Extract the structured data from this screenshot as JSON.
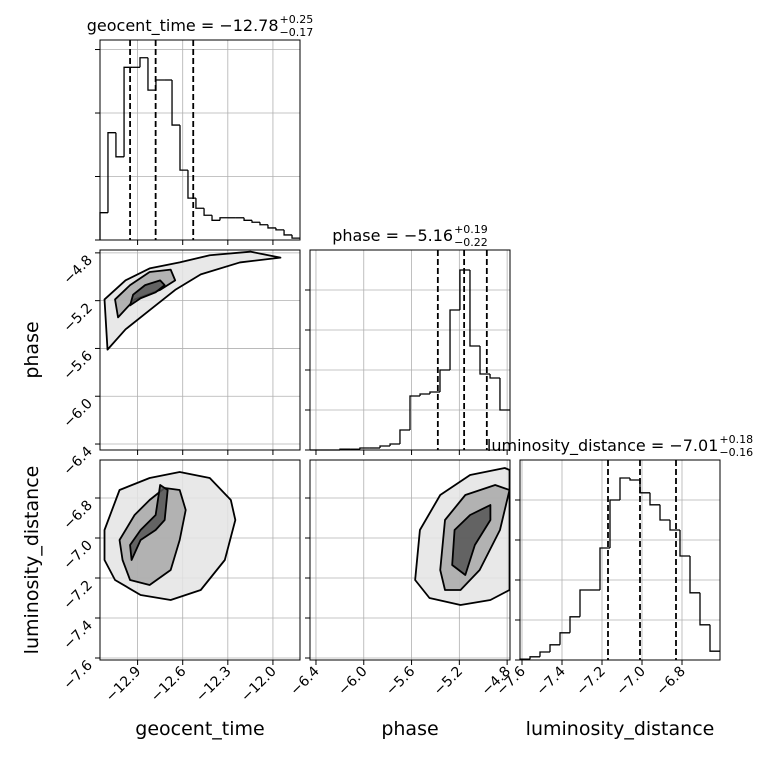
{
  "chart_data": {
    "type": "corner",
    "params": [
      {
        "label": "geocent_time",
        "title": {
          "text": "geocent_time = −12.78",
          "plus": "+0.25",
          "minus": "−0.17"
        },
        "xlim": [
          -13.15,
          -11.82
        ],
        "ticks": [
          {
            "value": -12.9,
            "label": "−12.9"
          },
          {
            "value": -12.6,
            "label": "−12.6"
          },
          {
            "value": -12.3,
            "label": "−12.3"
          },
          {
            "value": -12.0,
            "label": "−12.0"
          }
        ],
        "quantiles": [
          -12.95,
          -12.78,
          -12.53
        ],
        "hist": {
          "bins": [
            -13.15,
            -13.097,
            -13.044,
            -12.99,
            -12.937,
            -12.884,
            -12.831,
            -12.778,
            -12.724,
            -12.671,
            -12.618,
            -12.565,
            -12.512,
            -12.458,
            -12.405,
            -12.352,
            -12.299,
            -12.246,
            -12.192,
            -12.139,
            -12.086,
            -12.033,
            -11.98,
            -11.926,
            -11.873,
            -11.82
          ],
          "counts": [
            0.43,
            1.69,
            1.31,
            2.72,
            2.72,
            2.87,
            2.36,
            2.52,
            2.52,
            1.81,
            1.1,
            0.66,
            0.5,
            0.39,
            0.31,
            0.35,
            0.35,
            0.35,
            0.31,
            0.28,
            0.24,
            0.19,
            0.16,
            0.08,
            0.03
          ],
          "ylim": [
            0,
            3.15
          ],
          "yticks": [
            0,
            1,
            2,
            3
          ]
        }
      },
      {
        "label": "phase",
        "title": {
          "text": "phase = −5.16",
          "plus": "+0.19",
          "minus": "−0.22"
        },
        "xlim": [
          -6.45,
          -4.776
        ],
        "ticks": [
          {
            "value": -6.4,
            "label": "−6.4"
          },
          {
            "value": -6.0,
            "label": "−6.0"
          },
          {
            "value": -5.6,
            "label": "−5.6"
          },
          {
            "value": -5.2,
            "label": "−5.2"
          },
          {
            "value": -4.8,
            "label": "−4.8"
          }
        ],
        "quantiles": [
          -5.38,
          -5.16,
          -4.97
        ],
        "hist": {
          "bins": [
            -6.45,
            -6.366,
            -6.283,
            -6.199,
            -6.115,
            -6.032,
            -5.948,
            -5.864,
            -5.78,
            -5.697,
            -5.613,
            -5.529,
            -5.446,
            -5.362,
            -5.278,
            -5.195,
            -5.111,
            -5.027,
            -4.943,
            -4.86,
            -4.776
          ],
          "counts": [
            0,
            0,
            0,
            0.02,
            0.02,
            0.05,
            0.05,
            0.1,
            0.15,
            0.5,
            1.35,
            1.4,
            1.45,
            2.0,
            3.5,
            4.5,
            2.6,
            1.9,
            1.8,
            1.0
          ],
          "ylim": [
            0,
            5
          ],
          "yticks": [
            0,
            1,
            2,
            3,
            4
          ]
        }
      },
      {
        "label": "luminosity_distance",
        "title": {
          "text": "luminosity_distance = −7.01",
          "plus": "+0.18",
          "minus": "−0.16"
        },
        "xlim": [
          -7.61,
          -6.61
        ],
        "ticks": [
          {
            "value": -7.6,
            "label": "−7.6"
          },
          {
            "value": -7.4,
            "label": "−7.4"
          },
          {
            "value": -7.2,
            "label": "−7.2"
          },
          {
            "value": -7.0,
            "label": "−7.0"
          },
          {
            "value": -6.8,
            "label": "−6.8"
          }
        ],
        "quantiles": [
          -7.17,
          -7.01,
          -6.83
        ],
        "hist": {
          "bins": [
            -7.61,
            -7.56,
            -7.51,
            -7.46,
            -7.41,
            -7.36,
            -7.31,
            -7.26,
            -7.21,
            -7.16,
            -7.11,
            -7.06,
            -7.01,
            -6.96,
            -6.91,
            -6.86,
            -6.81,
            -6.76,
            -6.71,
            -6.66,
            -6.61
          ],
          "counts": [
            0.02,
            0.08,
            0.2,
            0.38,
            0.68,
            1.08,
            1.75,
            1.75,
            2.8,
            4.0,
            4.55,
            4.5,
            4.18,
            3.88,
            3.5,
            3.25,
            2.6,
            1.68,
            0.88,
            0.22
          ],
          "ylim": [
            0,
            5
          ],
          "yticks": [
            0,
            1,
            2,
            3,
            4
          ]
        }
      }
    ],
    "contours": [
      {
        "xparam": 0,
        "yparam": 1,
        "levels": [
          {
            "x": [
              -13.1,
              -12.98,
              -12.82,
              -12.65,
              -12.48,
              -12.22,
              -11.95,
              -12.15,
              -12.42,
              -12.62,
              -12.82,
              -12.98,
              -13.12
            ],
            "y": [
              -5.61,
              -5.44,
              -5.28,
              -5.11,
              -4.98,
              -4.88,
              -4.84,
              -4.79,
              -4.82,
              -4.88,
              -4.93,
              -5.03,
              -5.19
            ]
          },
          {
            "x": [
              -13.03,
              -12.92,
              -12.75,
              -12.65,
              -12.68,
              -12.82,
              -12.95,
              -13.05
            ],
            "y": [
              -5.34,
              -5.19,
              -5.11,
              -5.03,
              -4.94,
              -4.96,
              -5.07,
              -5.19
            ]
          },
          {
            "x": [
              -12.95,
              -12.88,
              -12.78,
              -12.72,
              -12.75,
              -12.85,
              -12.93
            ],
            "y": [
              -5.24,
              -5.18,
              -5.13,
              -5.07,
              -5.03,
              -5.07,
              -5.15
            ]
          }
        ]
      },
      {
        "xparam": 0,
        "yparam": 2,
        "levels": [
          {
            "x": [
              -13.12,
              -13.02,
              -12.82,
              -12.62,
              -12.42,
              -12.28,
              -12.25,
              -12.32,
              -12.48,
              -12.68,
              -12.88,
              -13.05,
              -13.12
            ],
            "y": [
              -6.96,
              -6.76,
              -6.7,
              -6.67,
              -6.7,
              -6.81,
              -6.91,
              -7.11,
              -7.26,
              -7.31,
              -7.285,
              -7.21,
              -7.11
            ]
          },
          {
            "x": [
              -13.02,
              -12.92,
              -12.82,
              -12.72,
              -12.62,
              -12.58,
              -12.62,
              -12.68,
              -12.82,
              -12.95,
              -13.0
            ],
            "y": [
              -7.01,
              -6.885,
              -6.81,
              -6.75,
              -6.76,
              -6.86,
              -7.01,
              -7.16,
              -7.235,
              -7.21,
              -7.11
            ]
          },
          {
            "x": [
              -12.94,
              -12.88,
              -12.78,
              -12.72,
              -12.7,
              -12.75,
              -12.78,
              -12.88,
              -12.95
            ],
            "y": [
              -7.11,
              -7.01,
              -6.96,
              -6.91,
              -6.76,
              -6.735,
              -6.885,
              -6.96,
              -7.035
            ]
          }
        ]
      },
      {
        "xparam": 1,
        "yparam": 2,
        "levels": [
          {
            "x": [
              -5.57,
              -5.53,
              -5.36,
              -5.11,
              -4.82,
              -4.78,
              -4.78,
              -4.94,
              -5.19,
              -5.45
            ],
            "y": [
              -7.21,
              -6.96,
              -6.785,
              -6.685,
              -6.65,
              -6.66,
              -7.26,
              -7.31,
              -7.335,
              -7.3
            ]
          },
          {
            "x": [
              -5.36,
              -5.32,
              -5.15,
              -4.9,
              -4.78,
              -4.86,
              -5.03,
              -5.19,
              -5.32
            ],
            "y": [
              -7.16,
              -6.91,
              -6.785,
              -6.735,
              -6.76,
              -6.96,
              -7.16,
              -7.26,
              -7.26
            ]
          },
          {
            "x": [
              -5.26,
              -5.24,
              -5.11,
              -4.94,
              -4.94,
              -5.07,
              -5.15
            ],
            "y": [
              -7.135,
              -6.96,
              -6.885,
              -6.835,
              -6.91,
              -7.035,
              -7.185
            ]
          }
        ]
      }
    ]
  }
}
